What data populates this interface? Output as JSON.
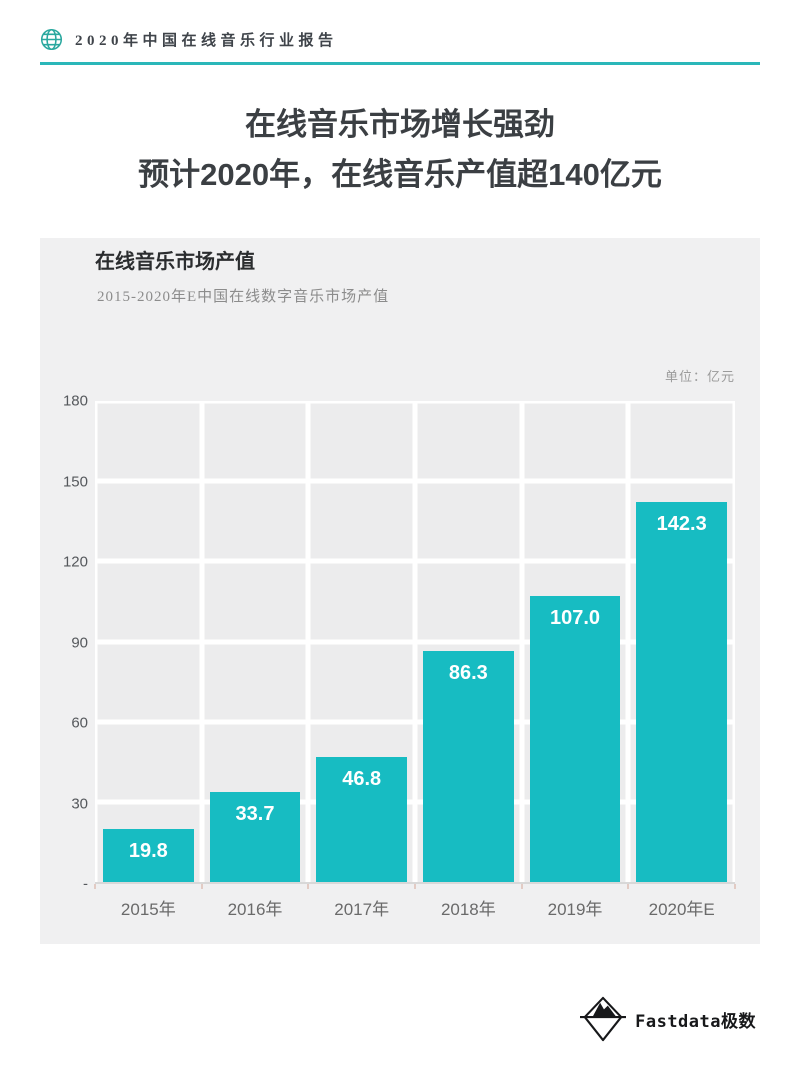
{
  "header": {
    "title": "2020年中国在线音乐行业报告",
    "icon": "globe-icon"
  },
  "main_title": {
    "line1": "在线音乐市场增长强劲",
    "line2": "预计2020年，在线音乐产值超140亿元"
  },
  "panel": {
    "title": "在线音乐市场产值",
    "subtitle": "2015-2020年E中国在线数字音乐市场产值",
    "unit_label": "单位：亿元"
  },
  "chart_data": {
    "type": "bar",
    "title": "在线音乐市场产值",
    "subtitle": "2015-2020年E中国在线数字音乐市场产值",
    "unit": "亿元",
    "categories": [
      "2015年",
      "2016年",
      "2017年",
      "2018年",
      "2019年",
      "2020年E"
    ],
    "values": [
      19.8,
      33.7,
      46.8,
      86.3,
      107.0,
      142.3
    ],
    "value_labels": [
      "19.8",
      "33.7",
      "46.8",
      "86.3",
      "107.0",
      "142.3"
    ],
    "ylim": [
      0,
      180
    ],
    "ytick_interval": 30,
    "ytick_labels": [
      "-",
      "30",
      "60",
      "90",
      "120",
      "150",
      "180"
    ],
    "grid": true,
    "legend": "none",
    "bar_color": "#17bcc2",
    "value_label_color": "#ffffff",
    "grid_color": "#ffffff",
    "plot_background": "#ececed"
  },
  "footer": {
    "brand": "Fastdata极数",
    "accent_color": "#2ab7b9"
  }
}
